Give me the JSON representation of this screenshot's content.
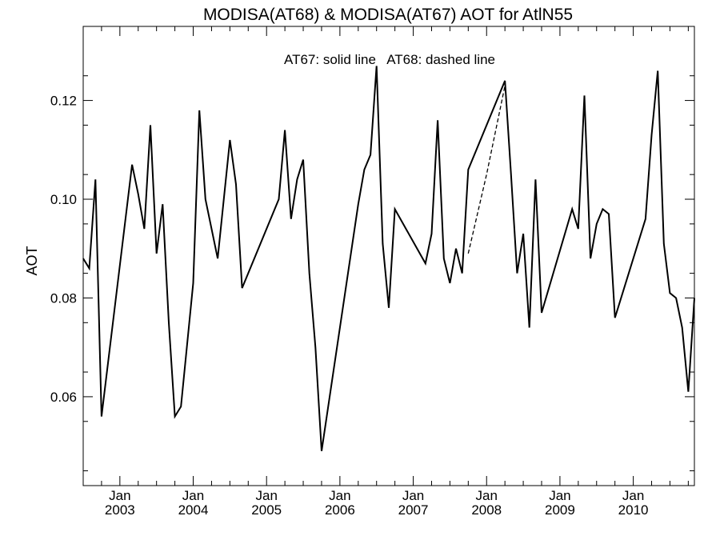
{
  "chart_data": {
    "type": "line",
    "title": "MODISA(AT68) & MODISA(AT67)  AOT for AtlN55",
    "annotation": "AT67: solid line   AT68: dashed line",
    "ylabel": "AOT",
    "xlabel": "",
    "ylim": [
      0.042,
      0.135
    ],
    "xlim": [
      "2002-07-01",
      "2010-11-01"
    ],
    "grid": false,
    "y_ticks": [
      "0.06",
      "0.08",
      "0.10",
      "0.12"
    ],
    "y_tick_values": [
      0.06,
      0.08,
      0.1,
      0.12
    ],
    "x_ticks": [
      {
        "date": "2003-01-01",
        "month": "Jan",
        "year": "2003"
      },
      {
        "date": "2004-01-01",
        "month": "Jan",
        "year": "2004"
      },
      {
        "date": "2005-01-01",
        "month": "Jan",
        "year": "2005"
      },
      {
        "date": "2006-01-01",
        "month": "Jan",
        "year": "2006"
      },
      {
        "date": "2007-01-01",
        "month": "Jan",
        "year": "2007"
      },
      {
        "date": "2008-01-01",
        "month": "Jan",
        "year": "2008"
      },
      {
        "date": "2009-01-01",
        "month": "Jan",
        "year": "2009"
      },
      {
        "date": "2010-01-01",
        "month": "Jan",
        "year": "2010"
      }
    ],
    "series": [
      {
        "name": "AT67",
        "style": "solid",
        "color": "#000000",
        "x": [
          "2002-07",
          "2002-08",
          "2002-09",
          "2002-10",
          "2003-03",
          "2003-04",
          "2003-05",
          "2003-06",
          "2003-07",
          "2003-08",
          "2003-09",
          "2003-10",
          "2003-11",
          "2004-01",
          "2004-02",
          "2004-03",
          "2004-05",
          "2004-07",
          "2004-08",
          "2004-09",
          "2005-03",
          "2005-04",
          "2005-05",
          "2005-06",
          "2005-07",
          "2005-08",
          "2005-09",
          "2005-10",
          "2006-04",
          "2006-05",
          "2006-06",
          "2006-07",
          "2006-08",
          "2006-09",
          "2006-10",
          "2007-03",
          "2007-04",
          "2007-05",
          "2007-06",
          "2007-07",
          "2007-08",
          "2007-09",
          "2007-10",
          "2008-04",
          "2008-05",
          "2008-06",
          "2008-07",
          "2008-08",
          "2008-09",
          "2008-10",
          "2009-03",
          "2009-04",
          "2009-05",
          "2009-06",
          "2009-07",
          "2009-08",
          "2009-09",
          "2009-10",
          "2010-03",
          "2010-04",
          "2010-05",
          "2010-06",
          "2010-07",
          "2010-08",
          "2010-09",
          "2010-10",
          "2010-11"
        ],
        "values": [
          0.088,
          0.086,
          0.104,
          0.056,
          0.107,
          0.101,
          0.094,
          0.115,
          0.089,
          0.099,
          0.075,
          0.056,
          0.058,
          0.083,
          0.118,
          0.1,
          0.088,
          0.112,
          0.103,
          0.082,
          0.1,
          0.114,
          0.096,
          0.104,
          0.108,
          0.085,
          0.07,
          0.049,
          0.099,
          0.106,
          0.109,
          0.127,
          0.091,
          0.078,
          0.098,
          0.087,
          0.093,
          0.116,
          0.088,
          0.083,
          0.09,
          0.085,
          0.106,
          0.124,
          0.105,
          0.085,
          0.093,
          0.074,
          0.104,
          0.077,
          0.098,
          0.094,
          0.121,
          0.088,
          0.095,
          0.098,
          0.097,
          0.076,
          0.096,
          0.113,
          0.126,
          0.091,
          0.081,
          0.08,
          0.074,
          0.061,
          0.08
        ]
      },
      {
        "name": "AT68",
        "style": "dashed",
        "color": "#000000",
        "x": [
          "2007-10",
          "2008-01",
          "2008-04"
        ],
        "values": [
          0.089,
          0.105,
          0.123
        ]
      }
    ]
  }
}
